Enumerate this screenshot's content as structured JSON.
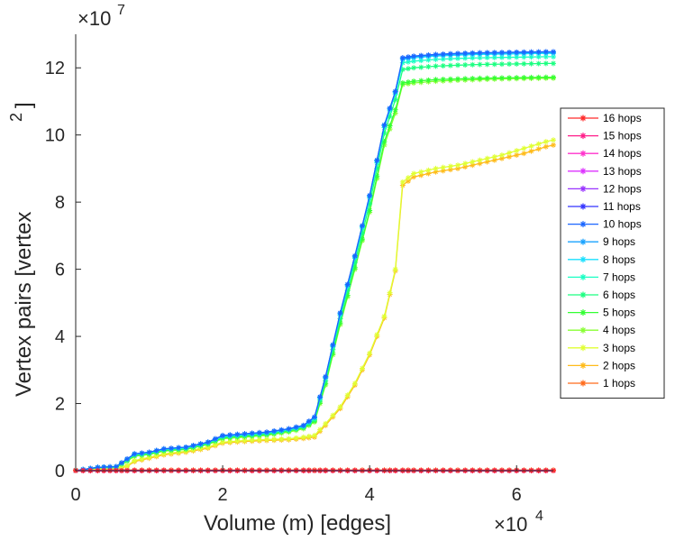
{
  "chart_data": {
    "type": "line",
    "xlabel": "Volume (m) [edges]",
    "ylabel": "Vertex pairs [vertex",
    "ylabel_sup": "2",
    "ylabel_close": "]",
    "x_multiplier": {
      "base": "×10",
      "exp": "4"
    },
    "y_multiplier": {
      "base": "×10",
      "exp": "7"
    },
    "xlim": [
      0,
      65000
    ],
    "ylim": [
      0,
      130000000
    ],
    "x_ticks": [
      0,
      20000,
      40000,
      60000
    ],
    "x_tick_labels": [
      "0",
      "2",
      "4",
      "6"
    ],
    "y_ticks": [
      0,
      20000000,
      40000000,
      60000000,
      80000000,
      100000000,
      120000000
    ],
    "y_tick_labels": [
      "0",
      "2",
      "4",
      "6",
      "8",
      "10",
      "12"
    ],
    "grid": false,
    "legend_position": "right",
    "x": [
      0,
      3000,
      5500,
      7000,
      8000,
      10000,
      12000,
      15000,
      18000,
      20000,
      23000,
      26000,
      29000,
      31000,
      32500,
      34000,
      36000,
      38000,
      40000,
      42000,
      43500,
      44500,
      46000,
      49000,
      52000,
      55000,
      58000,
      61000,
      64000,
      65000
    ],
    "series": [
      {
        "name": "16 hops",
        "color": "#ff2a2a",
        "values": [
          0,
          0,
          0,
          0,
          0,
          0,
          0,
          0,
          0,
          0,
          0,
          0,
          0,
          0,
          0,
          0,
          0,
          0,
          0,
          0,
          0,
          0,
          0,
          0,
          0,
          0,
          0,
          0,
          0,
          0
        ]
      },
      {
        "name": "15 hops",
        "color": "#ff1f8a",
        "values": [
          0,
          0,
          0,
          0,
          0,
          0,
          0,
          0,
          0,
          0,
          0,
          0,
          0,
          0,
          0,
          0,
          0,
          0,
          0,
          0,
          0,
          0,
          0,
          0,
          0,
          0,
          0,
          0,
          0,
          0
        ]
      },
      {
        "name": "14 hops",
        "color": "#ff33cc",
        "values": [
          0,
          0,
          0,
          0,
          0,
          0,
          0,
          0,
          0,
          0,
          0,
          0,
          0,
          0,
          0,
          0,
          0,
          0,
          0,
          0,
          0,
          0,
          0,
          0,
          0,
          0,
          0,
          0,
          0,
          0
        ]
      },
      {
        "name": "13 hops",
        "color": "#dd33ff",
        "values": [
          0,
          0,
          0,
          0,
          0,
          0,
          0,
          0,
          0,
          0,
          0,
          0,
          0,
          0,
          0,
          0,
          0,
          0,
          0,
          0,
          0,
          0,
          0,
          0,
          0,
          0,
          0,
          0,
          0,
          0
        ]
      },
      {
        "name": "12 hops",
        "color": "#9933ff",
        "values": [
          0,
          0,
          0,
          0,
          0,
          0,
          0,
          0,
          0,
          0,
          0,
          0,
          0,
          0,
          0,
          0,
          0,
          0,
          0,
          0,
          0,
          0,
          0,
          0,
          0,
          0,
          0,
          0,
          0,
          0
        ]
      },
      {
        "name": "11 hops",
        "color": "#3333ff",
        "values": [
          0,
          0,
          0,
          0,
          0,
          0,
          0,
          0,
          0,
          0,
          0,
          0,
          0,
          0,
          0,
          0,
          0,
          0,
          0,
          0,
          0,
          0,
          0,
          0,
          0,
          0,
          0,
          0,
          0,
          0
        ]
      },
      {
        "name": "10 hops",
        "color": "#1a66ff",
        "values": [
          0,
          1000000,
          1200000,
          3500000,
          5000000,
          5500000,
          6500000,
          7000000,
          8500000,
          10500000,
          11000000,
          11500000,
          12500000,
          13500000,
          16000000,
          28000000,
          47000000,
          64000000,
          82000000,
          103000000,
          113000000,
          123000000,
          123500000,
          124000000,
          124300000,
          124500000,
          124600000,
          124700000,
          124800000,
          124800000
        ]
      },
      {
        "name": "9 hops",
        "color": "#1aa3ff",
        "values": [
          0,
          1000000,
          1200000,
          3500000,
          5000000,
          5500000,
          6500000,
          7000000,
          8500000,
          10400000,
          10900000,
          11400000,
          12400000,
          13400000,
          15900000,
          27900000,
          46900000,
          63900000,
          81900000,
          102900000,
          112900000,
          122800000,
          123300000,
          123800000,
          124100000,
          124300000,
          124400000,
          124500000,
          124600000,
          124600000
        ]
      },
      {
        "name": "8 hops",
        "color": "#1ae0ff",
        "values": [
          0,
          1000000,
          1200000,
          3400000,
          4900000,
          5400000,
          6400000,
          6900000,
          8400000,
          10300000,
          10800000,
          11300000,
          12300000,
          13300000,
          15800000,
          27800000,
          46700000,
          63700000,
          81700000,
          102700000,
          112700000,
          122500000,
          123000000,
          123500000,
          123800000,
          124000000,
          124100000,
          124200000,
          124300000,
          124300000
        ]
      },
      {
        "name": "7 hops",
        "color": "#1affc4",
        "values": [
          0,
          1000000,
          1200000,
          3300000,
          4800000,
          5300000,
          6300000,
          6800000,
          8300000,
          10200000,
          10700000,
          11200000,
          12200000,
          13200000,
          15600000,
          27500000,
          46300000,
          63300000,
          81200000,
          102200000,
          112200000,
          121500000,
          122000000,
          122500000,
          122800000,
          123000000,
          123100000,
          123200000,
          123300000,
          123300000
        ]
      },
      {
        "name": "6 hops",
        "color": "#1aff80",
        "values": [
          0,
          900000,
          1100000,
          3200000,
          4700000,
          5200000,
          6200000,
          6700000,
          8200000,
          10000000,
          10500000,
          11000000,
          12000000,
          13000000,
          15200000,
          26800000,
          45300000,
          62000000,
          79500000,
          100500000,
          110500000,
          119500000,
          120000000,
          120500000,
          120800000,
          121000000,
          121100000,
          121200000,
          121300000,
          121300000
        ]
      },
      {
        "name": "5 hops",
        "color": "#33ff33",
        "values": [
          0,
          900000,
          1100000,
          3000000,
          4500000,
          5000000,
          6000000,
          6500000,
          8000000,
          9800000,
          10300000,
          10800000,
          11800000,
          12800000,
          14800000,
          26000000,
          44000000,
          60500000,
          77500000,
          98000000,
          107500000,
          115500000,
          116000000,
          116500000,
          116700000,
          116900000,
          117000000,
          117100000,
          117200000,
          117200000
        ]
      },
      {
        "name": "4 hops",
        "color": "#88ff33",
        "values": [
          0,
          800000,
          1000000,
          2800000,
          4300000,
          4800000,
          5800000,
          6300000,
          7800000,
          9500000,
          10000000,
          10500000,
          11500000,
          12500000,
          14500000,
          25500000,
          43500000,
          60000000,
          77000000,
          97000000,
          106500000,
          115000000,
          115500000,
          116000000,
          116300000,
          116500000,
          116700000,
          116800000,
          116900000,
          116900000
        ]
      },
      {
        "name": "3 hops",
        "color": "#e0ff33",
        "values": [
          0,
          500000,
          700000,
          1500000,
          3000000,
          4000000,
          5000000,
          5800000,
          7000000,
          8500000,
          9000000,
          9300000,
          9500000,
          10000000,
          10500000,
          14000000,
          19000000,
          26000000,
          35000000,
          46000000,
          60000000,
          86000000,
          88500000,
          90000000,
          91000000,
          92500000,
          94000000,
          96000000,
          98000000,
          98500000
        ]
      },
      {
        "name": "2 hops",
        "color": "#ffbb1a",
        "values": [
          0,
          400000,
          600000,
          1300000,
          2700000,
          3700000,
          4700000,
          5500000,
          6700000,
          8200000,
          8700000,
          9000000,
          9200000,
          9600000,
          10000000,
          13500000,
          18500000,
          25500000,
          34500000,
          45500000,
          59500000,
          85000000,
          87500000,
          89000000,
          90000000,
          91500000,
          93000000,
          94500000,
          96500000,
          97000000
        ]
      },
      {
        "name": "1 hops",
        "color": "#ff6a1a",
        "values": [
          200000,
          200000,
          200000,
          200000,
          200000,
          200000,
          200000,
          200000,
          200000,
          200000,
          200000,
          200000,
          200000,
          200000,
          200000,
          200000,
          200000,
          200000,
          200000,
          200000,
          200000,
          200000,
          200000,
          200000,
          200000,
          200000,
          200000,
          200000,
          200000,
          200000
        ]
      }
    ]
  }
}
